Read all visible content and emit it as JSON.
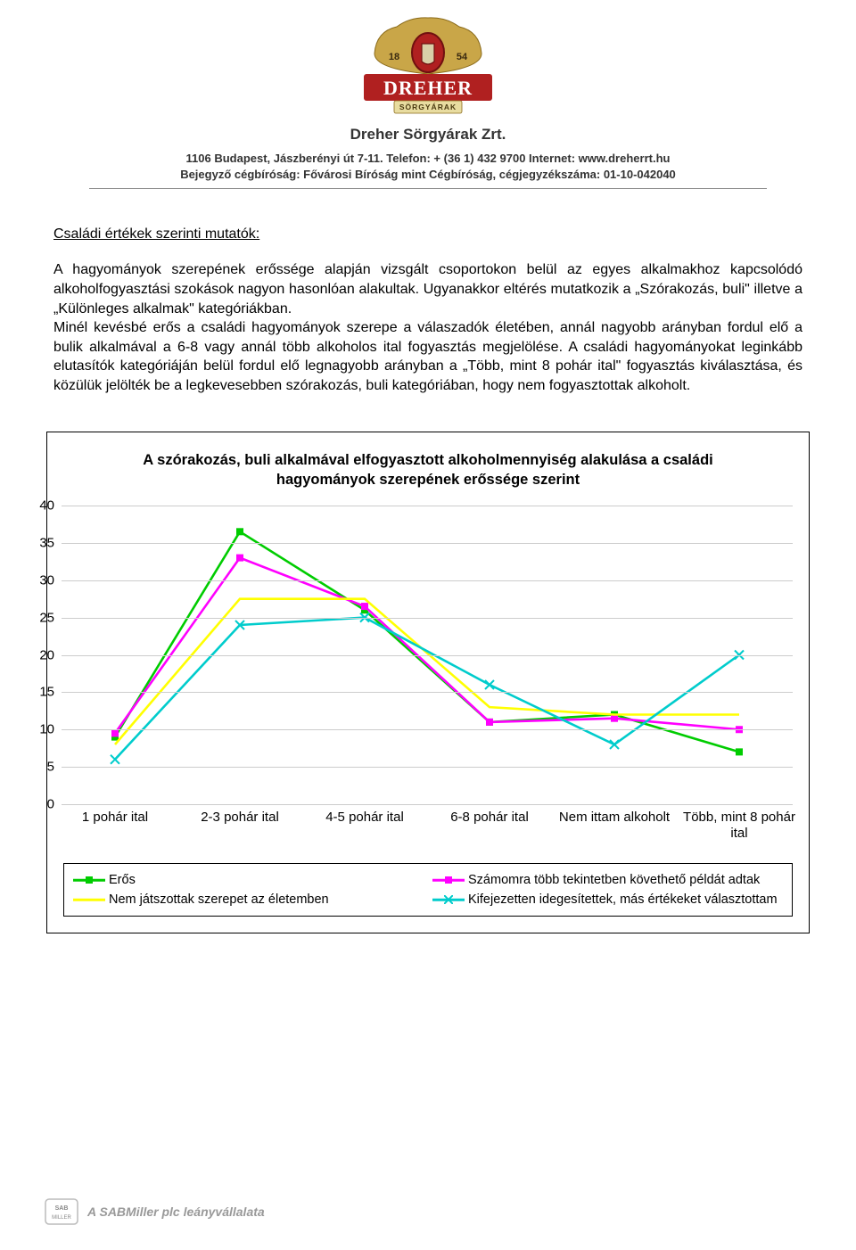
{
  "header": {
    "company_name": "Dreher Sörgyárak Zrt.",
    "info_line1": "1106 Budapest, Jászberényi út 7-11.  Telefon: + (36 1) 432 9700 Internet: www.dreherrt.hu",
    "info_line2": "Bejegyző cégbíróság: Fővárosi Bíróság mint Cégbíróság, cégjegyzékszáma: 01-10-042040",
    "logo_brand": "DREHER",
    "logo_sub": "SÖRGYÁRAK",
    "logo_year_left": "18",
    "logo_year_right": "54"
  },
  "section": {
    "heading": "Családi értékek szerinti mutatók:",
    "paragraph": "A hagyományok szerepének erőssége alapján vizsgált csoportokon belül az egyes alkalmakhoz kapcsolódó alkoholfogyasztási szokások nagyon hasonlóan alakultak. Ugyanakkor eltérés mutatkozik a „Szórakozás, buli\" illetve a „Különleges alkalmak\" kategóriákban.\nMinél kevésbé erős a családi hagyományok szerepe a válaszadók életében, annál nagyobb arányban fordul elő a bulik alkalmával a 6-8 vagy annál több alkoholos ital fogyasztás megjelölése. A családi hagyományokat leginkább elutasítók kategóriáján belül fordul elő legnagyobb arányban a „Több, mint 8 pohár ital\" fogyasztás kiválasztása, és közülük jelölték be a legkevesebben szórakozás, buli kategóriában, hogy nem fogyasztottak alkoholt."
  },
  "chart": {
    "type": "line",
    "title": "A szórakozás, buli alkalmával elfogyasztott alkoholmennyiség alakulása a családi hagyományok szerepének erőssége szerint",
    "x_categories": [
      "1 pohár ital",
      "2-3 pohár ital",
      "4-5 pohár ital",
      "6-8 pohár ital",
      "Nem ittam alkoholt",
      "Több, mint 8 pohár ital"
    ],
    "ylim": [
      0,
      40
    ],
    "ytick_step": 5,
    "y_ticks": [
      0,
      5,
      10,
      15,
      20,
      25,
      30,
      35,
      40
    ],
    "background_color": "#ffffff",
    "grid_color": "#cccccc",
    "line_width": 2.6,
    "marker_size": 8,
    "label_fontsize": 15,
    "title_fontsize": 16.5,
    "series": [
      {
        "name": "Erős",
        "color": "#00cc00",
        "marker": "square",
        "values": [
          9,
          36.5,
          26,
          11,
          12,
          7
        ]
      },
      {
        "name": "Számomra több tekintetben követhető példát adtak",
        "color": "#ff00ff",
        "marker": "square",
        "values": [
          9.5,
          33,
          26.5,
          11,
          11.5,
          10
        ]
      },
      {
        "name": "Nem játszottak szerepet az életemben",
        "color": "#ffff00",
        "marker": "none",
        "values": [
          8,
          27.5,
          27.5,
          13,
          12,
          12
        ]
      },
      {
        "name": "Kifejezetten idegesítettek, más értékeket választottam",
        "color": "#00cccc",
        "marker": "x",
        "values": [
          6,
          24,
          25,
          16,
          8,
          20
        ]
      }
    ]
  },
  "footer": {
    "brand": "SAB MILLER",
    "text": "A SABMiller plc leányvállalata"
  }
}
